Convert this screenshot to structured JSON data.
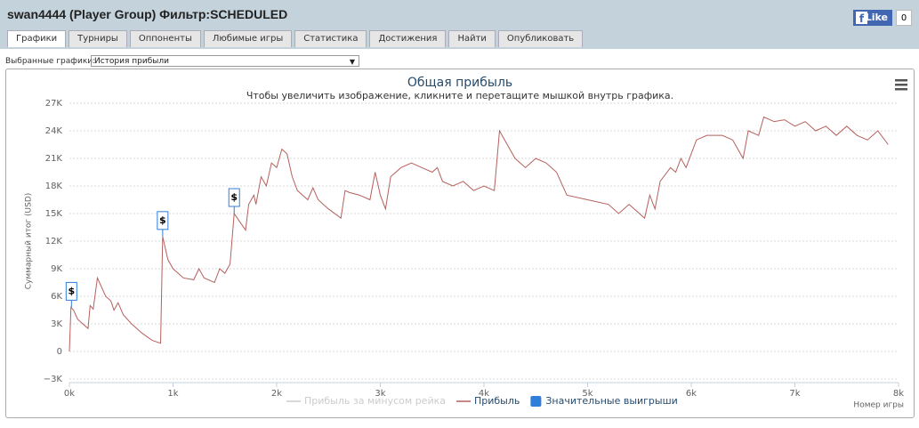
{
  "header": {
    "title": "swan4444 (Player Group) Фильтр:SCHEDULED",
    "like": "Like",
    "like_count": 0
  },
  "tabs": [
    "Графики",
    "Турниры",
    "Оппоненты",
    "Любимые игры",
    "Статистика",
    "Достижения",
    "Найти",
    "Опубликовать"
  ],
  "selector": {
    "label": "Выбранные графики:",
    "value": "История прибыли"
  },
  "chart_data": {
    "type": "line",
    "title": "Общая прибыль",
    "subtitle": "Чтобы увеличить изображение, кликните и перетащите мышкой внутрь графика.",
    "y_label": "Суммарный итог (USD)",
    "x_label": "Номер игры",
    "xlim": [
      0,
      8000
    ],
    "xticks": [
      {
        "value": 0,
        "label": "0k"
      },
      {
        "value": 1000,
        "label": "1k"
      },
      {
        "value": 2000,
        "label": "2k"
      },
      {
        "value": 3000,
        "label": "3k"
      },
      {
        "value": 4000,
        "label": "4k"
      },
      {
        "value": 5000,
        "label": "5k"
      },
      {
        "value": 6000,
        "label": "6k"
      },
      {
        "value": 7000,
        "label": "7k"
      },
      {
        "value": 8000,
        "label": "8k"
      }
    ],
    "ylim": [
      -3000,
      27000
    ],
    "yticks": [
      {
        "value": -3000,
        "label": "−3K"
      },
      0,
      {
        "value": 3000,
        "label": "3K"
      },
      {
        "value": 6000,
        "label": "6K"
      },
      {
        "value": 9000,
        "label": "9K"
      },
      {
        "value": 12000,
        "label": "12K"
      },
      {
        "value": 15000,
        "label": "15K"
      },
      {
        "value": 18000,
        "label": "18K"
      },
      {
        "value": 21000,
        "label": "21K"
      },
      {
        "value": 24000,
        "label": "24K"
      },
      {
        "value": 27000,
        "label": "27K"
      }
    ],
    "grid": true,
    "x": [
      0,
      15,
      40,
      80,
      180,
      200,
      230,
      270,
      350,
      400,
      430,
      470,
      520,
      600,
      700,
      800,
      880,
      900,
      950,
      1000,
      1100,
      1200,
      1250,
      1300,
      1400,
      1450,
      1500,
      1550,
      1590,
      1620,
      1700,
      1730,
      1780,
      1800,
      1850,
      1900,
      1950,
      2000,
      2050,
      2100,
      2150,
      2200,
      2300,
      2350,
      2400,
      2500,
      2620,
      2660,
      2700,
      2800,
      2900,
      2950,
      3000,
      3050,
      3100,
      3200,
      3300,
      3400,
      3500,
      3550,
      3600,
      3700,
      3800,
      3900,
      4000,
      4100,
      4150,
      4200,
      4300,
      4400,
      4500,
      4600,
      4700,
      4800,
      5000,
      5200,
      5300,
      5400,
      5550,
      5600,
      5650,
      5700,
      5800,
      5850,
      5900,
      5950,
      6000,
      6050,
      6150,
      6300,
      6400,
      6500,
      6550,
      6650,
      6700,
      6800,
      6900,
      7000,
      7100,
      7200,
      7300,
      7400,
      7500,
      7600,
      7700,
      7800,
      7900
    ],
    "series": [
      {
        "name": "Прибыль за минусом рейка",
        "color": "#cccccc",
        "visible": false
      },
      {
        "name": "Прибыль",
        "color": "#b5605d",
        "visible": true,
        "values": [
          0,
          4800,
          4500,
          3500,
          2500,
          5000,
          4600,
          8000,
          6000,
          5500,
          4500,
          5300,
          4000,
          3000,
          2000,
          1200,
          900,
          12500,
          10000,
          9000,
          8000,
          7800,
          9000,
          8000,
          7500,
          9000,
          8500,
          9500,
          15000,
          14500,
          13200,
          16000,
          17000,
          16000,
          19000,
          18000,
          20500,
          20000,
          22000,
          21500,
          19000,
          17500,
          16500,
          17800,
          16500,
          15500,
          14500,
          17500,
          17300,
          17000,
          16500,
          19500,
          17000,
          15500,
          19000,
          20000,
          20500,
          20000,
          19500,
          20000,
          18500,
          18000,
          18500,
          17500,
          18000,
          17500,
          24000,
          23000,
          21000,
          20000,
          21000,
          20500,
          19500,
          17000,
          16500,
          16000,
          15000,
          16000,
          14500,
          17000,
          15500,
          18500,
          20000,
          19500,
          21000,
          20000,
          21500,
          23000,
          23500,
          23500,
          23000,
          21000,
          24000,
          23500,
          25500,
          25000,
          25200,
          24500,
          25000,
          24000,
          24500,
          23500,
          24500,
          23500,
          23000,
          24000,
          22500
        ]
      }
    ],
    "flags": {
      "name": "Значительные выигрыши",
      "color": "#2f7ed8",
      "label": "$",
      "x": [
        20,
        900,
        1590
      ],
      "values": [
        4800,
        12500,
        15000
      ]
    }
  }
}
